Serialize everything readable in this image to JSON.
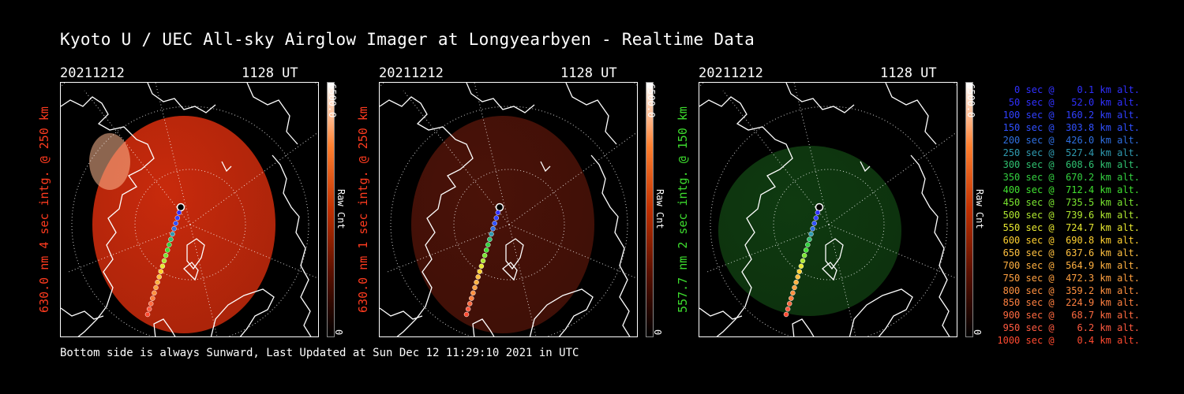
{
  "title": "Kyoto U / UEC All-sky Airglow Imager at Longyearbyen - Realtime Data",
  "footer": "Bottom side is always Sunward, Last Updated at Sun Dec 12 11:29:10 2021 in UTC",
  "panels": [
    {
      "date": "20211212",
      "time": "1128 UT",
      "ylabel": "630.0 nm 4 sec intg. @ 250 km",
      "label_color": "#ff3b1f",
      "glow_color": "#c82a0c",
      "cbar_max": "6500.0",
      "cbar_min": "0",
      "cbar_unit": "Raw Cnt"
    },
    {
      "date": "20211212",
      "time": "1128 UT",
      "ylabel": "630.0 nm 1 sec intg. @ 250 km",
      "label_color": "#ff3b1f",
      "glow_color": "#4a1208",
      "cbar_max": "6500.0",
      "cbar_min": "0",
      "cbar_unit": "Raw Cnt"
    },
    {
      "date": "20211212",
      "time": "1128 UT",
      "ylabel": "557.7 nm 2 sec intg. @ 150 km",
      "label_color": "#3ddc2e",
      "glow_color": "#0f3a10",
      "cbar_max": "6500.0",
      "cbar_min": "0",
      "cbar_unit": "Raw Cnt"
    }
  ],
  "legend": [
    {
      "text": "   0 sec @    0.1 km alt.",
      "color": "#3030ff"
    },
    {
      "text": "  50 sec @   52.0 km alt.",
      "color": "#3030ff"
    },
    {
      "text": " 100 sec @  160.2 km alt.",
      "color": "#3040ff"
    },
    {
      "text": " 150 sec @  303.8 km alt.",
      "color": "#3050ff"
    },
    {
      "text": " 200 sec @  426.0 km alt.",
      "color": "#2f6fe0"
    },
    {
      "text": " 250 sec @  527.4 km alt.",
      "color": "#2f9ab0"
    },
    {
      "text": " 300 sec @  608.6 km alt.",
      "color": "#2fc070"
    },
    {
      "text": " 350 sec @  670.2 km alt.",
      "color": "#33d040"
    },
    {
      "text": " 400 sec @  712.4 km alt.",
      "color": "#40e030"
    },
    {
      "text": " 450 sec @  735.5 km alt.",
      "color": "#7ae530"
    },
    {
      "text": " 500 sec @  739.6 km alt.",
      "color": "#b0e830"
    },
    {
      "text": " 550 sec @  724.7 km alt.",
      "color": "#e8e830"
    },
    {
      "text": " 600 sec @  690.8 km alt.",
      "color": "#ffd030"
    },
    {
      "text": " 650 sec @  637.6 km alt.",
      "color": "#ffc040"
    },
    {
      "text": " 700 sec @  564.9 km alt.",
      "color": "#ffb040"
    },
    {
      "text": " 750 sec @  472.3 km alt.",
      "color": "#ffa040"
    },
    {
      "text": " 800 sec @  359.2 km alt.",
      "color": "#ff9040"
    },
    {
      "text": " 850 sec @  224.9 km alt.",
      "color": "#ff8040"
    },
    {
      "text": " 900 sec @   68.7 km alt.",
      "color": "#ff6a40"
    },
    {
      "text": " 950 sec @    6.2 km alt.",
      "color": "#ff5a40"
    },
    {
      "text": "1000 sec @    0.4 km alt.",
      "color": "#ff4a30"
    }
  ]
}
